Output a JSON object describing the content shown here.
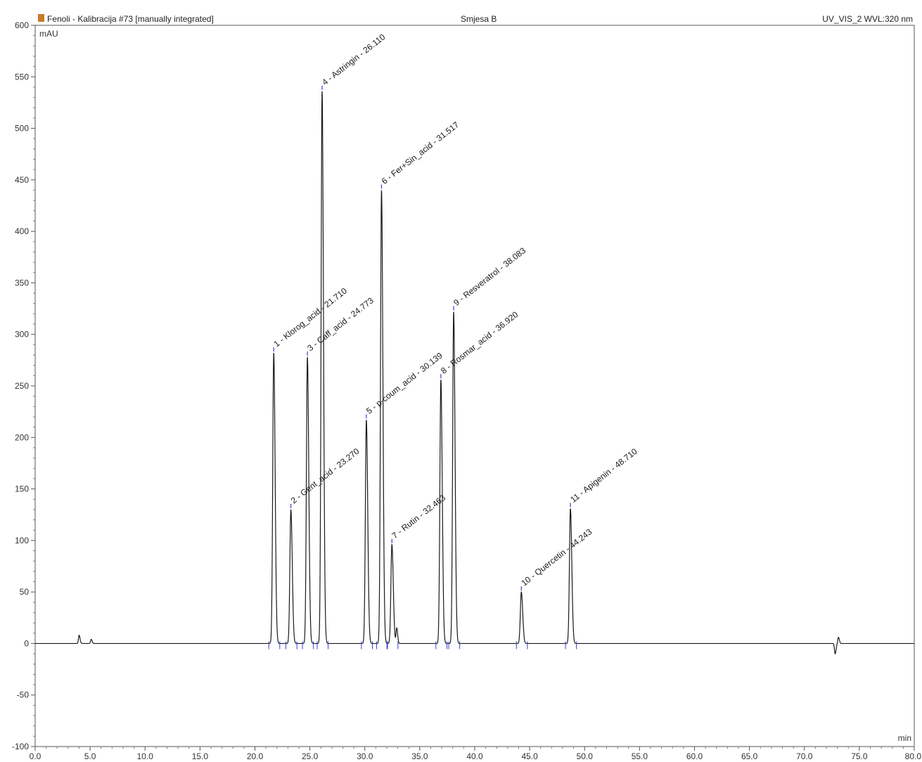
{
  "header": {
    "title": "Fenoli - Kalibracija #73 [manually integrated]",
    "sample": "Smjesa B",
    "channel": "UV_VIS_2 WVL:320 nm"
  },
  "chart_data": {
    "type": "line",
    "xlabel": "min",
    "ylabel": "mAU",
    "xlim": [
      0,
      80
    ],
    "ylim": [
      -100,
      600
    ],
    "x_ticks": [
      "0.0",
      "5.0",
      "10.0",
      "15.0",
      "20.0",
      "25.0",
      "30.0",
      "35.0",
      "40.0",
      "45.0",
      "50.0",
      "55.0",
      "60.0",
      "65.0",
      "70.0",
      "75.0",
      "80.0"
    ],
    "y_ticks": [
      "600",
      "550",
      "500",
      "450",
      "400",
      "350",
      "300",
      "250",
      "200",
      "150",
      "100",
      "50",
      "0",
      "-50",
      "-100"
    ],
    "grid": false,
    "peaks": [
      {
        "label": "1 - Klorog_acid - 21.710",
        "rt": 21.71,
        "height": 282
      },
      {
        "label": "2 - Gent_acid - 23.270",
        "rt": 23.27,
        "height": 130
      },
      {
        "label": "3 - Caff_acid - 24.773",
        "rt": 24.773,
        "height": 278
      },
      {
        "label": "4 - Astringin - 26.110",
        "rt": 26.11,
        "height": 536
      },
      {
        "label": "5 - p-coum_acid - 30.139",
        "rt": 30.139,
        "height": 217
      },
      {
        "label": "6 - Fer+Sin_acid - 31.517",
        "rt": 31.517,
        "height": 440
      },
      {
        "label": "7 - Rutin - 32.463",
        "rt": 32.463,
        "height": 96
      },
      {
        "label": "8 - Rosmar_acid - 36.920",
        "rt": 36.92,
        "height": 256
      },
      {
        "label": "9 - Resveratrol - 38.083",
        "rt": 38.083,
        "height": 322
      },
      {
        "label": "10 - Quercetin - 44.243",
        "rt": 44.243,
        "height": 50
      },
      {
        "label": "11 - Apigenin - 48.710",
        "rt": 48.71,
        "height": 131
      }
    ],
    "minor_features": [
      {
        "rt": 4.0,
        "height": 8
      },
      {
        "rt": 5.1,
        "height": 4
      },
      {
        "rt": 32.9,
        "height": 15
      },
      {
        "rt": 72.8,
        "height": -10
      },
      {
        "rt": 73.1,
        "height": 6
      }
    ],
    "line_color": "#1a1a1a",
    "marker_color": "#3a3ad0"
  }
}
